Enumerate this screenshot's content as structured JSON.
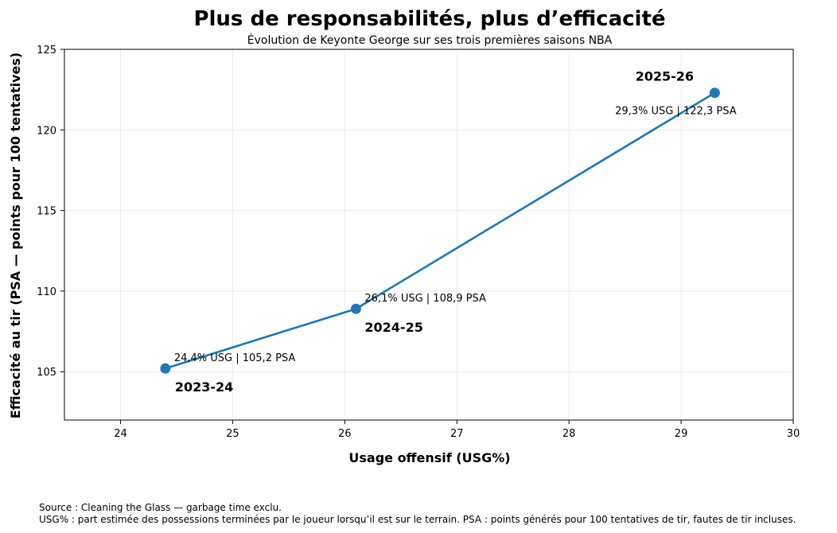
{
  "chart_data": {
    "type": "line",
    "title": "Plus de responsabilités, plus d’efficacité",
    "subtitle": "Évolution de Keyonte George sur ses trois premières saisons NBA",
    "xlabel": "Usage offensif (USG%)",
    "ylabel": "Efficacité au tir (PSA — points pour 100 tentatives)",
    "xlim": [
      23.5,
      30
    ],
    "ylim": [
      102,
      125
    ],
    "x_ticks": [
      24,
      25,
      26,
      27,
      28,
      29,
      30
    ],
    "y_ticks": [
      105,
      110,
      115,
      120,
      125
    ],
    "grid": true,
    "line_color": "#1f77b4",
    "points": [
      {
        "season": "2023-24",
        "x": 24.4,
        "y": 105.2,
        "annotation": "24,4% USG | 105,2 PSA"
      },
      {
        "season": "2024-25",
        "x": 26.1,
        "y": 108.9,
        "annotation": "26,1% USG | 108,9 PSA"
      },
      {
        "season": "2025-26",
        "x": 29.3,
        "y": 122.3,
        "annotation": "29,3% USG | 122,3 PSA"
      }
    ]
  },
  "footer": {
    "source": "Source : Cleaning the Glass — garbage time exclu.",
    "note": "USG% : part estimée des possessions terminées par le joueur lorsqu’il est sur le terrain. PSA : points générés pour 100 tentatives de tir, fautes de tir incluses."
  }
}
